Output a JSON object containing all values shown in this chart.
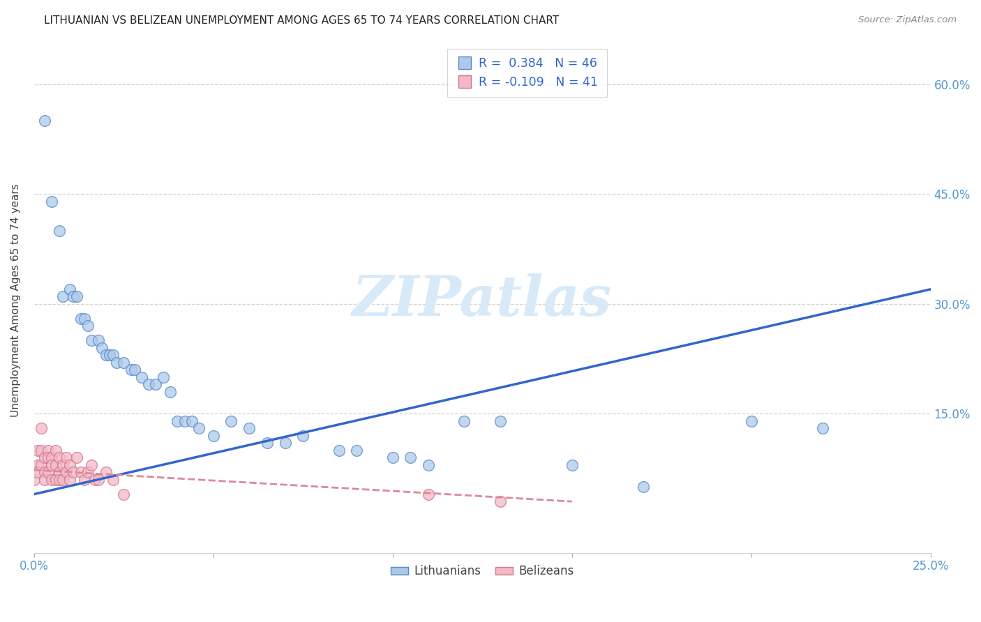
{
  "title": "LITHUANIAN VS BELIZEAN UNEMPLOYMENT AMONG AGES 65 TO 74 YEARS CORRELATION CHART",
  "source": "Source: ZipAtlas.com",
  "ylabel": "Unemployment Among Ages 65 to 74 years",
  "xlim": [
    0.0,
    0.25
  ],
  "ylim": [
    -0.04,
    0.65
  ],
  "background_color": "#ffffff",
  "watermark_text": "ZIPatlas",
  "blue_fill": "#aec9e8",
  "blue_edge": "#5588cc",
  "pink_fill": "#f5b8c8",
  "pink_edge": "#cc7788",
  "blue_line": "#3366cc",
  "pink_line": "#dd8899",
  "title_color": "#222222",
  "ylabel_color": "#444444",
  "tick_color": "#5599cc",
  "source_color": "#888888",
  "lit_x": [
    0.003,
    0.005,
    0.007,
    0.008,
    0.01,
    0.011,
    0.012,
    0.013,
    0.014,
    0.015,
    0.016,
    0.018,
    0.019,
    0.02,
    0.021,
    0.022,
    0.023,
    0.025,
    0.027,
    0.028,
    0.03,
    0.032,
    0.034,
    0.036,
    0.038,
    0.04,
    0.042,
    0.044,
    0.046,
    0.05,
    0.055,
    0.06,
    0.065,
    0.07,
    0.075,
    0.085,
    0.09,
    0.1,
    0.105,
    0.11,
    0.12,
    0.13,
    0.15,
    0.17,
    0.2,
    0.22
  ],
  "lit_y": [
    0.55,
    0.44,
    0.4,
    0.31,
    0.32,
    0.31,
    0.31,
    0.28,
    0.28,
    0.27,
    0.25,
    0.25,
    0.24,
    0.23,
    0.23,
    0.23,
    0.22,
    0.22,
    0.21,
    0.21,
    0.2,
    0.19,
    0.19,
    0.2,
    0.18,
    0.14,
    0.14,
    0.14,
    0.13,
    0.12,
    0.14,
    0.13,
    0.11,
    0.11,
    0.12,
    0.1,
    0.1,
    0.09,
    0.09,
    0.08,
    0.14,
    0.14,
    0.08,
    0.05,
    0.14,
    0.13
  ],
  "bel_x": [
    0.0,
    0.001,
    0.001,
    0.001,
    0.002,
    0.002,
    0.002,
    0.003,
    0.003,
    0.003,
    0.004,
    0.004,
    0.004,
    0.005,
    0.005,
    0.005,
    0.006,
    0.006,
    0.006,
    0.007,
    0.007,
    0.007,
    0.008,
    0.008,
    0.009,
    0.009,
    0.01,
    0.01,
    0.011,
    0.012,
    0.013,
    0.014,
    0.015,
    0.016,
    0.017,
    0.018,
    0.02,
    0.022,
    0.025,
    0.11,
    0.13
  ],
  "bel_y": [
    0.06,
    0.1,
    0.08,
    0.07,
    0.13,
    0.1,
    0.08,
    0.09,
    0.07,
    0.06,
    0.1,
    0.09,
    0.07,
    0.09,
    0.08,
    0.06,
    0.1,
    0.08,
    0.06,
    0.09,
    0.07,
    0.06,
    0.08,
    0.06,
    0.09,
    0.07,
    0.08,
    0.06,
    0.07,
    0.09,
    0.07,
    0.06,
    0.07,
    0.08,
    0.06,
    0.06,
    0.07,
    0.06,
    0.04,
    0.04,
    0.03
  ],
  "lit_line_x": [
    0.0,
    0.25
  ],
  "lit_line_y": [
    0.04,
    0.32
  ],
  "bel_line_x": [
    0.0,
    0.15
  ],
  "bel_line_y": [
    0.073,
    0.03
  ],
  "grid_yticks": [
    0.15,
    0.3,
    0.45,
    0.6
  ],
  "right_ytick_labels": [
    "15.0%",
    "30.0%",
    "45.0%",
    "60.0%"
  ]
}
